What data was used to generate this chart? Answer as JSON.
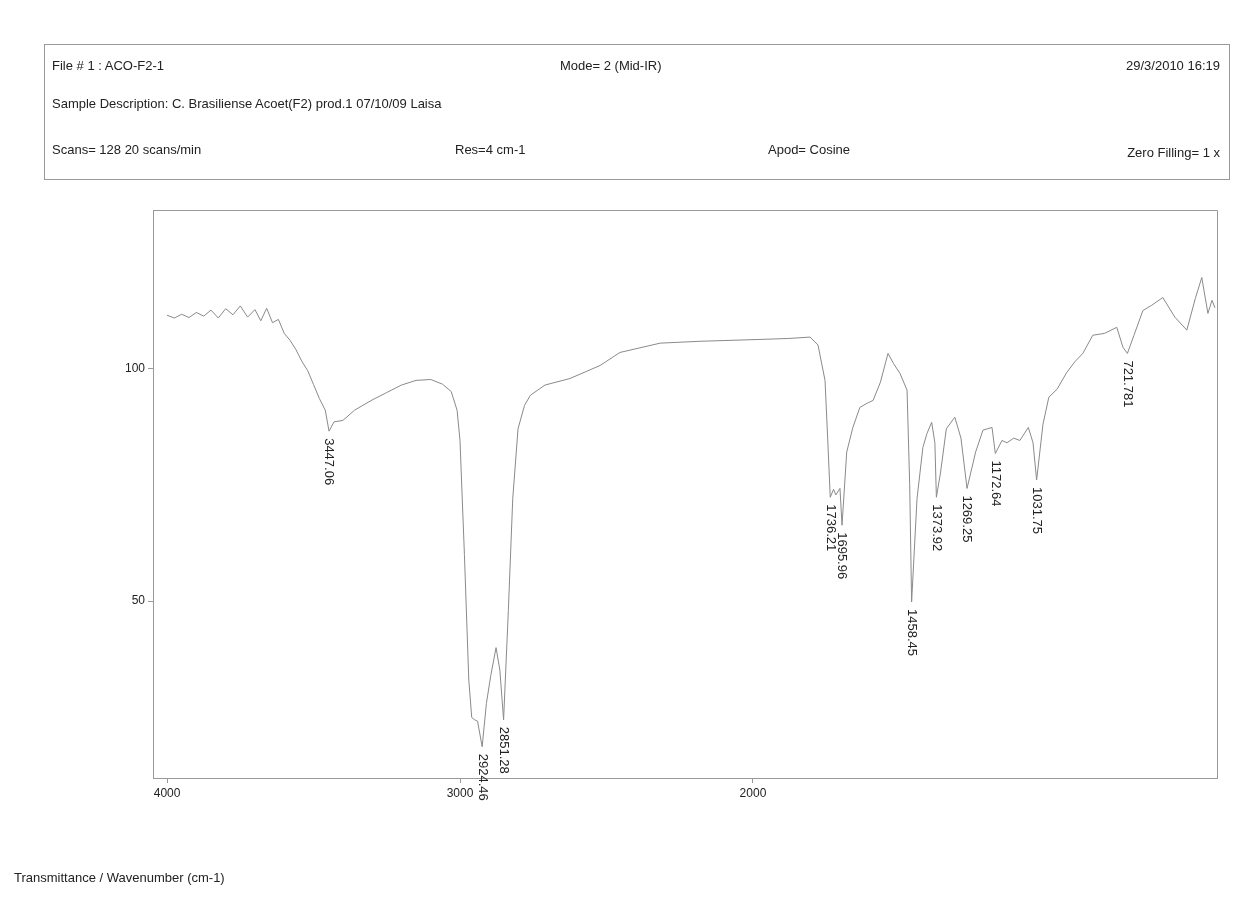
{
  "chart_data": {
    "type": "line",
    "xlim": [
      4048,
      416
    ],
    "xticks": [
      4000,
      3000,
      2000
    ],
    "ylim": [
      12,
      134
    ],
    "yticks": [
      100,
      50
    ],
    "grid": false,
    "marker": "none",
    "x": [
      4000,
      3975,
      3950,
      3925,
      3900,
      3875,
      3850,
      3825,
      3800,
      3775,
      3750,
      3725,
      3700,
      3680,
      3660,
      3640,
      3620,
      3600,
      3580,
      3560,
      3540,
      3520,
      3500,
      3480,
      3460,
      3447.06,
      3430,
      3400,
      3360,
      3300,
      3250,
      3200,
      3150,
      3100,
      3060,
      3030,
      3010,
      3000,
      2985,
      2970,
      2960,
      2950,
      2940,
      2924.46,
      2910,
      2895,
      2877,
      2864,
      2851.28,
      2835,
      2820,
      2802,
      2780,
      2760,
      2710,
      2625,
      2522,
      2454,
      2317,
      2181,
      1976,
      1880,
      1805,
      1778,
      1754,
      1745,
      1736.21,
      1725,
      1717,
      1703,
      1695.96,
      1680,
      1659,
      1635,
      1610,
      1590,
      1565,
      1539,
      1520,
      1498,
      1474,
      1465,
      1458.45,
      1440,
      1420,
      1406,
      1390,
      1379,
      1373.92,
      1360,
      1340,
      1311,
      1290,
      1269.25,
      1240,
      1215,
      1184,
      1172.64,
      1150,
      1133,
      1110,
      1089,
      1060,
      1044,
      1031.75,
      1010,
      990,
      962,
      930,
      900,
      874,
      840,
      800,
      758,
      737,
      721.781,
      700,
      669,
      640,
      601,
      560,
      519,
      490,
      468,
      447,
      433,
      423
    ],
    "series": [
      {
        "color": "#8a8a8a",
        "values": [
          111.4,
          110.8,
          111.6,
          110.9,
          112.0,
          111.2,
          112.5,
          110.8,
          112.8,
          111.5,
          113.4,
          111.0,
          112.6,
          110.2,
          112.9,
          109.8,
          110.5,
          107.5,
          106.0,
          104.0,
          101.5,
          99.5,
          96.5,
          93.5,
          91.0,
          86.5,
          88.5,
          88.8,
          91.0,
          93.2,
          94.8,
          96.4,
          97.4,
          97.6,
          96.6,
          95.0,
          91.0,
          84.5,
          60,
          33,
          25.0,
          24.5,
          24.2,
          18.7,
          28,
          34,
          40,
          35.2,
          24.5,
          48,
          72,
          87,
          92,
          94.2,
          96.4,
          97.8,
          100.6,
          103.4,
          105.4,
          105.8,
          106.2,
          106.4,
          106.7,
          105,
          97.4,
          85,
          72.3,
          74.0,
          72.8,
          74.2,
          66.3,
          82,
          87.3,
          91.6,
          92.5,
          93.1,
          97,
          103.2,
          101,
          98.9,
          95.3,
          75,
          49.8,
          72,
          83,
          86,
          88.4,
          84,
          72.3,
          77.5,
          87,
          89.5,
          85,
          74.2,
          82,
          86.7,
          87.3,
          81.7,
          84.5,
          84.0,
          85,
          84.5,
          87.3,
          84,
          76,
          88,
          93.8,
          95.5,
          99,
          101.5,
          103.2,
          107.1,
          107.5,
          108.8,
          104.5,
          103.2,
          107,
          112.4,
          113.5,
          115.2,
          111,
          108.2,
          115,
          119.5,
          111.8,
          114.6,
          113
        ]
      }
    ],
    "annotations": [
      "File # 1 : ACO-F2-1",
      "Mode= 2 (Mid-IR)",
      "29/3/2010 16:19",
      "Sample Description: C. Brasiliense Acoet(F2) prod.1 07/10/09 Laisa",
      "Scans= 128  20 scans/min",
      "Res=4 cm-1",
      "Apod= Cosine",
      "Zero Filling= 1 x",
      "Transmittance / Wavenumber (cm-1)",
      {
        "text": "3447.06",
        "x": 3447.06,
        "y": 86.5
      },
      {
        "text": "2924.46",
        "x": 2924.46,
        "y": 18.7
      },
      {
        "text": "2851.28",
        "x": 2851.28,
        "y": 24.5
      },
      {
        "text": "1736.21",
        "x": 1736.21,
        "y": 72.3
      },
      {
        "text": "1695.96",
        "x": 1695.96,
        "y": 66.3
      },
      {
        "text": "1458.45",
        "x": 1458.45,
        "y": 49.8
      },
      {
        "text": "1373.92",
        "x": 1373.92,
        "y": 72.3
      },
      {
        "text": "1269.25",
        "x": 1269.25,
        "y": 74.2
      },
      {
        "text": "1172.64",
        "x": 1172.64,
        "y": 81.7
      },
      {
        "text": "1031.75",
        "x": 1031.75,
        "y": 76
      },
      {
        "text": "721.781",
        "x": 721.781,
        "y": 103.2
      }
    ]
  }
}
